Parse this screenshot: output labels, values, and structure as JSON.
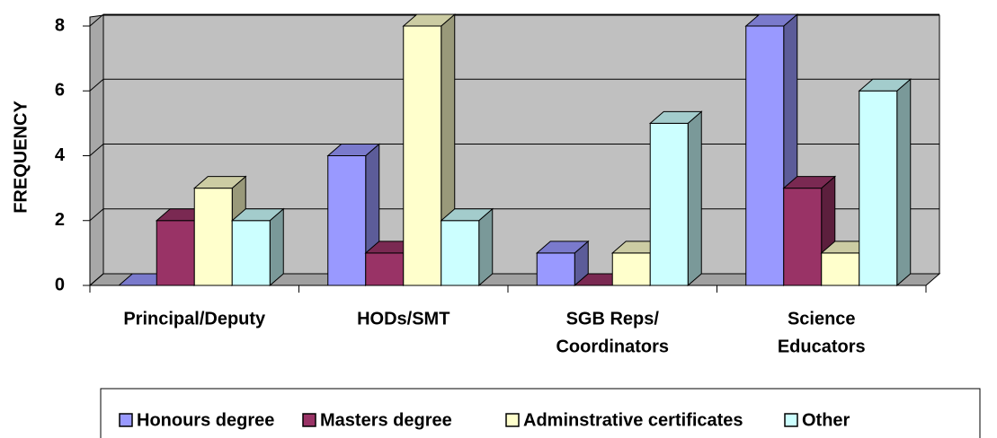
{
  "chart_data": {
    "type": "bar3d",
    "y_label": "FREQUENCY",
    "categories": [
      [
        "Principal/Deputy"
      ],
      [
        "HODs/SMT"
      ],
      [
        "SGB Reps/",
        "Coordinators"
      ],
      [
        "Science",
        "Educators"
      ]
    ],
    "series": [
      {
        "name": "Honours degree",
        "color": "#9999ff",
        "values": [
          0,
          4,
          1,
          8
        ]
      },
      {
        "name": "Masters degree",
        "color": "#993366",
        "values": [
          2,
          1,
          0,
          3
        ]
      },
      {
        "name": "Adminstrative certificates",
        "color": "#ffffcc",
        "values": [
          3,
          8,
          1,
          1
        ]
      },
      {
        "name": "Other",
        "color": "#ccffff",
        "values": [
          2,
          2,
          5,
          6
        ]
      }
    ],
    "ylim": [
      0,
      8
    ],
    "yticks": [
      0,
      2,
      4,
      6,
      8
    ],
    "grid": true,
    "legend": "bottom"
  }
}
